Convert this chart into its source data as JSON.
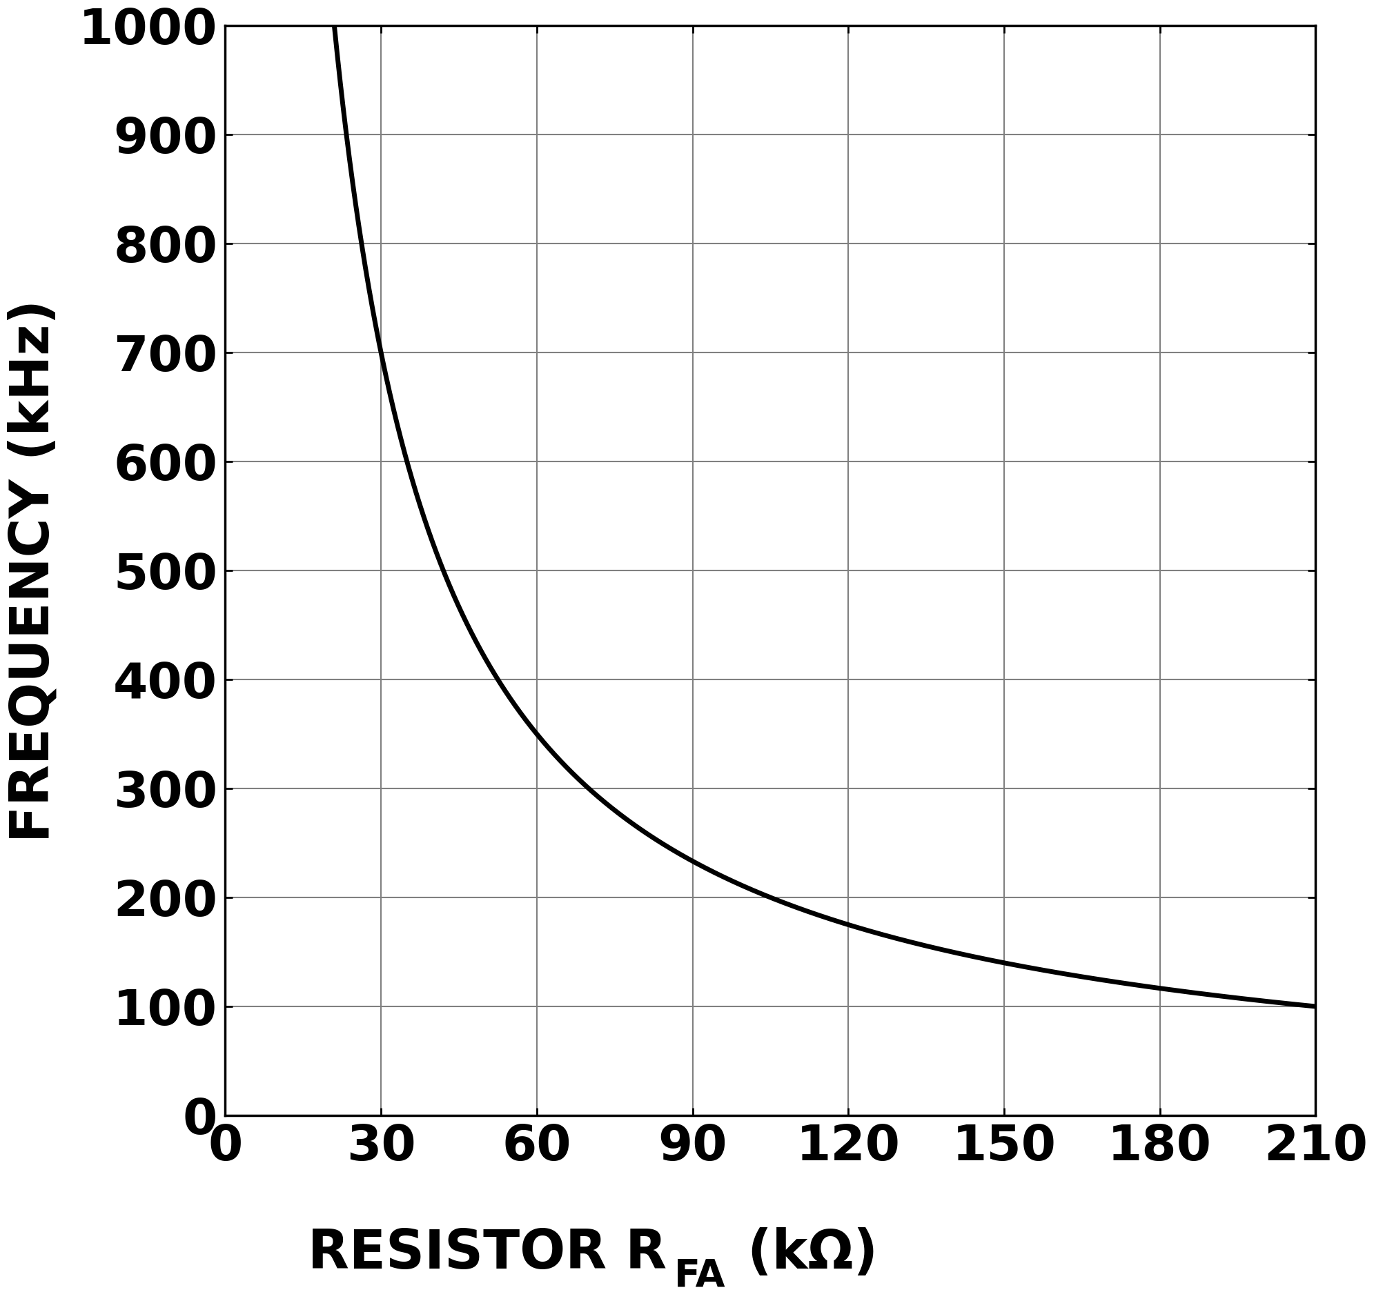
{
  "xlabel_main": "RESISTOR R",
  "xlabel_subscript": "FA",
  "xlabel_units": " (kΩ)",
  "ylabel": "FREQUENCY (kHz)",
  "xlim": [
    0,
    210
  ],
  "ylim": [
    0,
    1000
  ],
  "xticks": [
    0,
    30,
    60,
    90,
    120,
    150,
    180,
    210
  ],
  "yticks": [
    0,
    100,
    200,
    300,
    400,
    500,
    600,
    700,
    800,
    900,
    1000
  ],
  "curve_constant": 21000,
  "x_start": 21.0,
  "x_end": 210,
  "line_color": "#000000",
  "line_width": 5.0,
  "background_color": "#ffffff",
  "grid_color": "#808080",
  "grid_linewidth": 1.5,
  "tick_fontsize": 52,
  "label_fontsize": 56,
  "subscript_fontsize": 40,
  "fig_width": 20,
  "fig_height": 20
}
